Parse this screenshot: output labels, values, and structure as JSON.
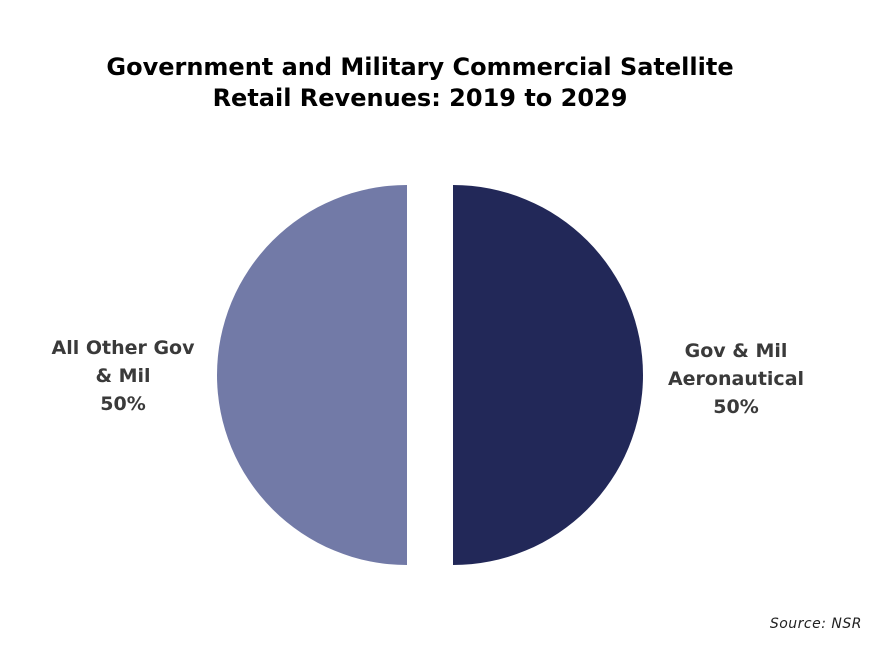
{
  "chart_data": {
    "type": "pie",
    "title_lines": [
      "Government and Military Commercial Satellite",
      "Retail Revenues: 2019 to 2029"
    ],
    "slices": [
      {
        "label_lines": [
          "All Other Gov",
          "& Mil"
        ],
        "value": 50,
        "value_label": "50%",
        "color": "#727aa7"
      },
      {
        "label_lines": [
          "Gov & Mil",
          "Aeronautical"
        ],
        "value": 50,
        "value_label": "50%",
        "color": "#222858"
      }
    ],
    "legend": "none",
    "source": "Source: NSR"
  }
}
